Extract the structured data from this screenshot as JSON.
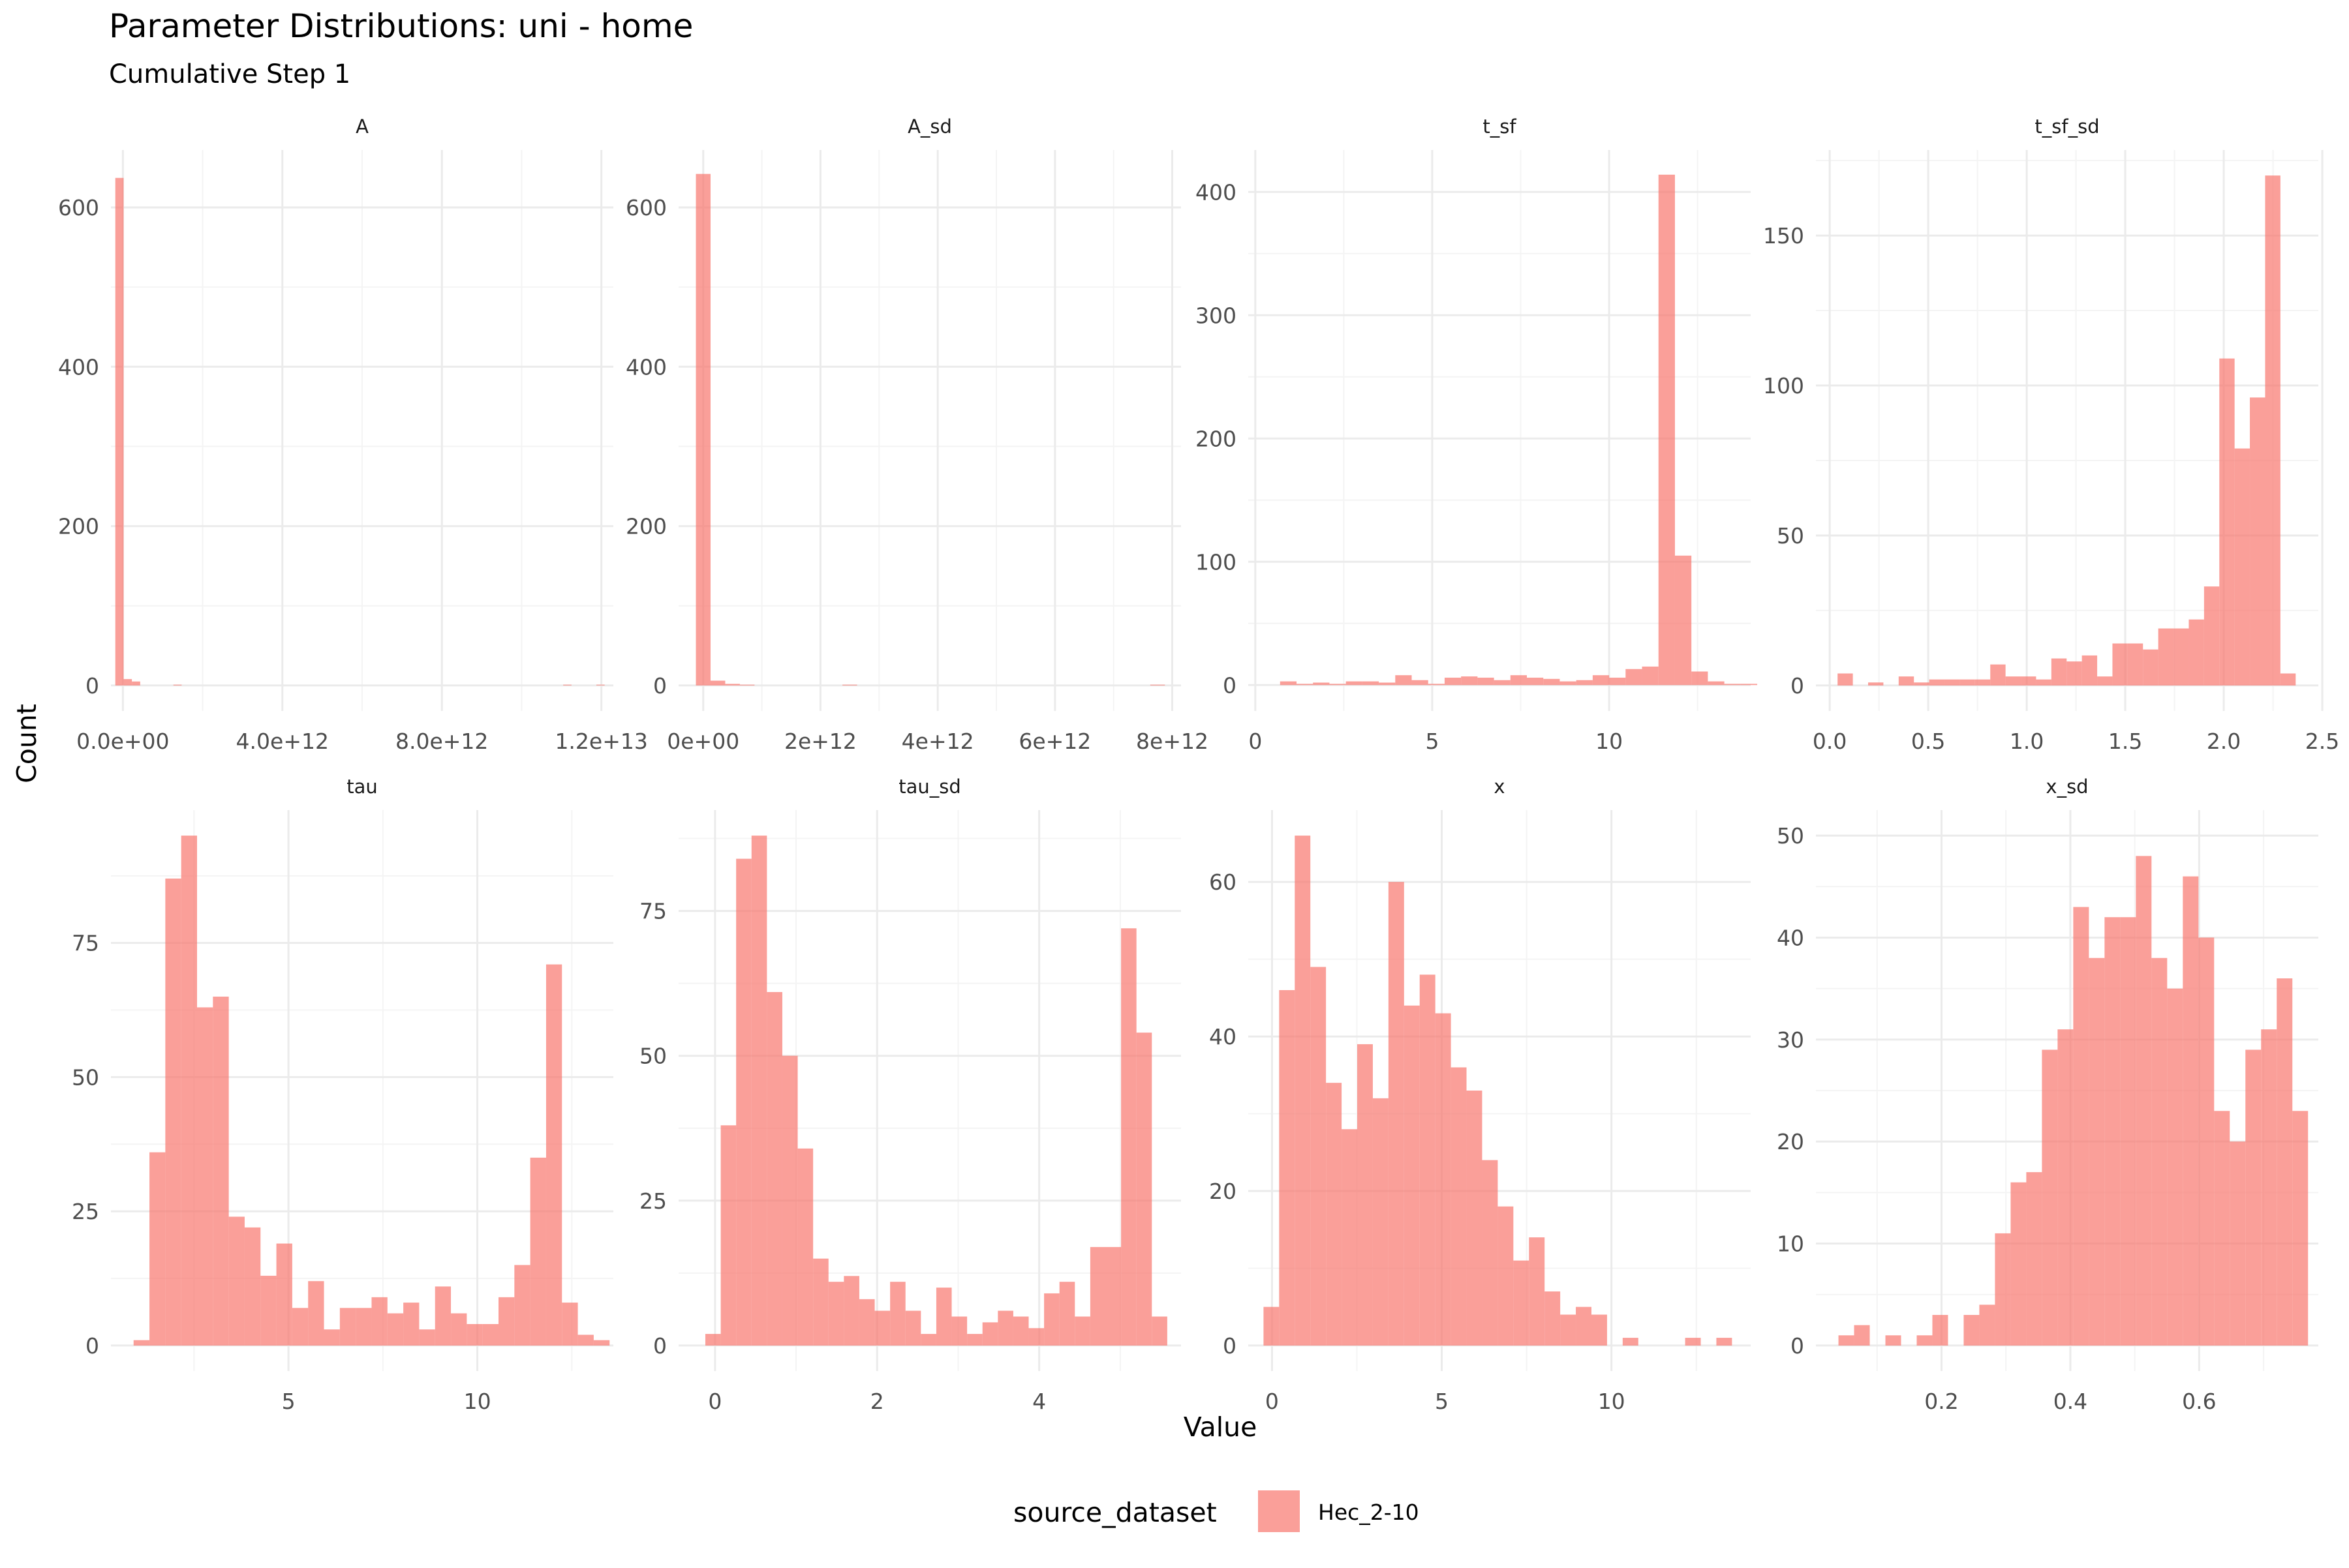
{
  "title": "Parameter Distributions: uni - home",
  "subtitle": "Cumulative Step 1",
  "xlabel": "Value",
  "ylabel": "Count",
  "legend": {
    "title": "source_dataset",
    "entries": [
      "Hec_2-10"
    ],
    "position": "bottom"
  },
  "colors": {
    "bar": "#F8766D",
    "grid_major": "#EBEBEB",
    "grid_minor": "#F4F4F4",
    "tick_text": "#4D4D4D"
  },
  "chart_data": [
    {
      "type": "bar",
      "panel": "A",
      "xlim": [
        -300000000000.0,
        12300000000000.0
      ],
      "ylim": [
        -32,
        672
      ],
      "xticks": [
        0,
        4000000000000.0,
        8000000000000.0,
        12000000000000.0
      ],
      "xtick_labels": [
        "0.0e+00",
        "4.0e+12",
        "8.0e+12",
        "1.2e+13"
      ],
      "yticks": [
        0,
        200,
        400,
        600
      ],
      "ytick_labels": [
        "0",
        "200",
        "400",
        "600"
      ],
      "bin_start": -190000000000.0,
      "bin_width": 208000000000.0,
      "values": [
        637,
        8,
        5,
        0,
        0,
        0,
        0,
        1,
        0,
        0,
        0,
        0,
        0,
        0,
        0,
        0,
        0,
        0,
        0,
        0,
        0,
        0,
        0,
        0,
        0,
        0,
        0,
        0,
        0,
        0,
        0,
        0,
        0,
        0,
        0,
        0,
        0,
        0,
        0,
        0,
        0,
        0,
        0,
        0,
        0,
        0,
        0,
        0,
        0,
        0,
        0,
        0,
        0,
        0,
        1,
        0,
        0,
        0,
        1
      ]
    },
    {
      "type": "bar",
      "panel": "A_sd",
      "xlim": [
        -420000000000.0,
        8150000000000.0
      ],
      "ylim": [
        -32,
        672
      ],
      "xticks": [
        0,
        2000000000000.0,
        4000000000000.0,
        6000000000000.0,
        8000000000000.0
      ],
      "xtick_labels": [
        "0e+00",
        "2e+12",
        "4e+12",
        "6e+12",
        "8e+12"
      ],
      "yticks": [
        0,
        200,
        400,
        600
      ],
      "ytick_labels": [
        "0",
        "200",
        "400",
        "600"
      ],
      "bin_start": -125000000000.0,
      "bin_width": 250000000000.0,
      "values": [
        642,
        6,
        2,
        1,
        0,
        0,
        0,
        0,
        0,
        0,
        1,
        0,
        0,
        0,
        0,
        0,
        0,
        0,
        0,
        0,
        0,
        0,
        0,
        0,
        0,
        0,
        0,
        0,
        0,
        0,
        0,
        1
      ]
    },
    {
      "type": "bar",
      "panel": "t_sf",
      "xlim": [
        -0.2,
        14.0
      ],
      "ylim": [
        -21,
        434
      ],
      "xticks": [
        0,
        5,
        10
      ],
      "xtick_labels": [
        "0",
        "5",
        "10"
      ],
      "yticks": [
        0,
        100,
        200,
        300,
        400
      ],
      "ytick_labels": [
        "0",
        "100",
        "200",
        "300",
        "400"
      ],
      "bin_start": 0.7,
      "bin_width": 0.465,
      "values": [
        3,
        1,
        2,
        1,
        3,
        3,
        2,
        8,
        4,
        1,
        6,
        7,
        6,
        4,
        8,
        6,
        5,
        3,
        4,
        8,
        6,
        13,
        15,
        414,
        105,
        11,
        3,
        1,
        1
      ]
    },
    {
      "type": "bar",
      "panel": "t_sf_sd",
      "xlim": [
        -0.07,
        2.48
      ],
      "ylim": [
        -8.5,
        178.5
      ],
      "xticks": [
        0,
        0.5,
        1.0,
        1.5,
        2.0,
        2.5
      ],
      "xtick_labels": [
        "0.0",
        "0.5",
        "1.0",
        "1.5",
        "2.0",
        "2.5"
      ],
      "yticks": [
        0,
        50,
        100,
        150
      ],
      "ytick_labels": [
        "0",
        "50",
        "100",
        "150"
      ],
      "bin_start": 0.04,
      "bin_width": 0.0775,
      "values": [
        4,
        0,
        1,
        0,
        3,
        1,
        2,
        2,
        2,
        2,
        7,
        3,
        3,
        2,
        9,
        8,
        10,
        3,
        14,
        14,
        12,
        19,
        19,
        22,
        33,
        109,
        79,
        96,
        170,
        4
      ]
    },
    {
      "type": "bar",
      "panel": "tau",
      "xlim": [
        0.3,
        13.6
      ],
      "ylim": [
        -4.75,
        99.75
      ],
      "xticks": [
        5,
        10
      ],
      "xtick_labels": [
        "5",
        "10"
      ],
      "yticks": [
        0,
        25,
        50,
        75
      ],
      "ytick_labels": [
        "0",
        "25",
        "50",
        "75"
      ],
      "bin_start": 0.9,
      "bin_width": 0.42,
      "values": [
        1,
        36,
        87,
        95,
        63,
        65,
        24,
        22,
        13,
        19,
        7,
        12,
        3,
        7,
        7,
        9,
        6,
        8,
        3,
        11,
        6,
        4,
        4,
        9,
        15,
        35,
        71,
        8,
        2,
        1
      ]
    },
    {
      "type": "bar",
      "panel": "tau_sd",
      "xlim": [
        -0.45,
        5.75
      ],
      "ylim": [
        -4.4,
        92.4
      ],
      "xticks": [
        0,
        2,
        4
      ],
      "xtick_labels": [
        "0",
        "2",
        "4"
      ],
      "yticks": [
        0,
        25,
        50,
        75
      ],
      "ytick_labels": [
        "0",
        "25",
        "50",
        "75"
      ],
      "bin_start": -0.12,
      "bin_width": 0.19,
      "values": [
        2,
        38,
        84,
        88,
        61,
        50,
        34,
        15,
        11,
        12,
        8,
        6,
        11,
        6,
        2,
        10,
        5,
        2,
        4,
        6,
        5,
        3,
        9,
        11,
        5,
        17,
        17,
        72,
        54,
        5
      ]
    },
    {
      "type": "bar",
      "panel": "x",
      "xlim": [
        -0.7,
        14.1
      ],
      "ylim": [
        -3.3,
        69.3
      ],
      "xticks": [
        0,
        5,
        10
      ],
      "xtick_labels": [
        "0",
        "5",
        "10"
      ],
      "yticks": [
        0,
        20,
        40,
        60
      ],
      "ytick_labels": [
        "0",
        "20",
        "40",
        "60"
      ],
      "bin_start": -0.25,
      "bin_width": 0.46,
      "values": [
        5,
        46,
        66,
        49,
        34,
        28,
        39,
        32,
        60,
        44,
        48,
        43,
        36,
        33,
        24,
        18,
        11,
        14,
        7,
        4,
        5,
        4,
        0,
        1,
        0,
        0,
        0,
        1,
        0,
        1
      ]
    },
    {
      "type": "bar",
      "panel": "x_sd",
      "xlim": [
        0.005,
        0.785
      ],
      "ylim": [
        -2.5,
        52.5
      ],
      "xticks": [
        0.2,
        0.4,
        0.6
      ],
      "xtick_labels": [
        "0.2",
        "0.4",
        "0.6"
      ],
      "yticks": [
        0,
        10,
        20,
        30,
        40,
        50
      ],
      "ytick_labels": [
        "0",
        "10",
        "20",
        "30",
        "40",
        "50"
      ],
      "bin_start": 0.04,
      "bin_width": 0.0243,
      "values": [
        1,
        2,
        0,
        1,
        0,
        1,
        3,
        0,
        3,
        4,
        11,
        16,
        17,
        29,
        31,
        43,
        38,
        42,
        42,
        48,
        38,
        35,
        46,
        40,
        23,
        20,
        29,
        31,
        36,
        23
      ]
    }
  ]
}
